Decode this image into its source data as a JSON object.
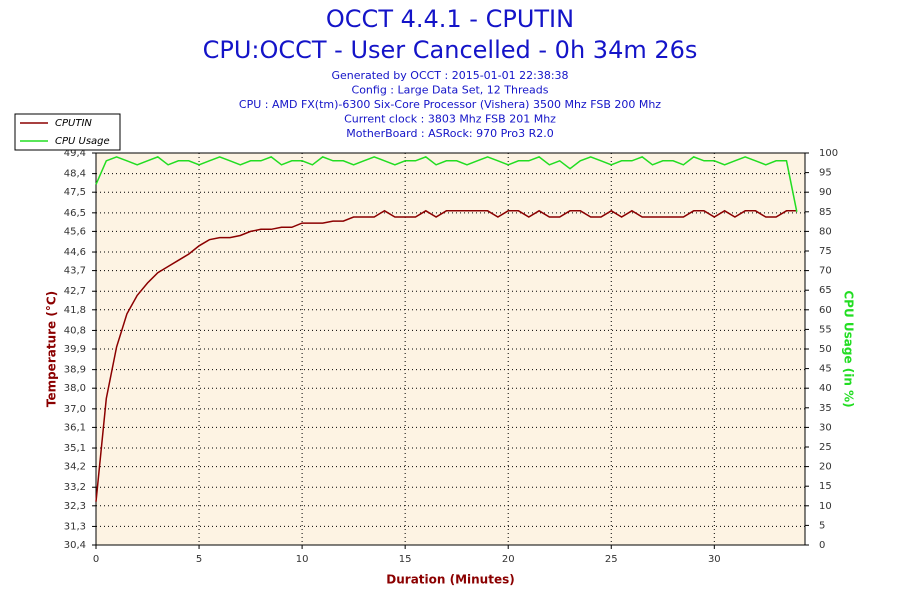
{
  "chart_data": {
    "type": "line",
    "title": "OCCT 4.4.1 - CPUTIN",
    "subtitle": "CPU:OCCT - User Cancelled - 0h 34m 26s",
    "notes": [
      "Generated by OCCT : 2015-01-01 22:38:38",
      "Config : Large Data Set, 12 Threads",
      "CPU : AMD FX(tm)-6300 Six-Core Processor (Vishera) 3500 Mhz FSB 200 Mhz",
      "Current clock : 3803 Mhz FSB 201 Mhz",
      "MotherBoard : ASRock: 970 Pro3 R2.0"
    ],
    "xlabel": "Duration (Minutes)",
    "ylabel": "Temperature (°C)",
    "y2label": "CPU Usage (in %)",
    "x": [
      0,
      0.5,
      1,
      1.5,
      2,
      2.5,
      3,
      3.5,
      4,
      4.5,
      5,
      5.5,
      6,
      6.5,
      7,
      7.5,
      8,
      8.5,
      9,
      9.5,
      10,
      10.5,
      11,
      11.5,
      12,
      12.5,
      13,
      13.5,
      14,
      14.5,
      15,
      15.5,
      16,
      16.5,
      17,
      17.5,
      18,
      18.5,
      19,
      19.5,
      20,
      20.5,
      21,
      21.5,
      22,
      22.5,
      23,
      23.5,
      24,
      24.5,
      25,
      25.5,
      26,
      26.5,
      27,
      27.5,
      28,
      28.5,
      29,
      29.5,
      30,
      30.5,
      31,
      31.5,
      32,
      32.5,
      33,
      33.5,
      34
    ],
    "series": [
      {
        "name": "CPUTIN",
        "color": "#8b0000",
        "axis": "y",
        "values": [
          32.5,
          37.5,
          40.0,
          41.6,
          42.5,
          43.1,
          43.6,
          43.9,
          44.2,
          44.5,
          44.9,
          45.2,
          45.3,
          45.3,
          45.4,
          45.6,
          45.7,
          45.7,
          45.8,
          45.8,
          46.0,
          46.0,
          46.0,
          46.1,
          46.1,
          46.3,
          46.3,
          46.3,
          46.6,
          46.3,
          46.3,
          46.3,
          46.6,
          46.3,
          46.6,
          46.6,
          46.6,
          46.6,
          46.6,
          46.3,
          46.6,
          46.6,
          46.3,
          46.6,
          46.3,
          46.3,
          46.6,
          46.6,
          46.3,
          46.3,
          46.6,
          46.3,
          46.6,
          46.3,
          46.3,
          46.3,
          46.3,
          46.3,
          46.6,
          46.6,
          46.3,
          46.6,
          46.3,
          46.6,
          46.6,
          46.3,
          46.3,
          46.6,
          46.6
        ]
      },
      {
        "name": "CPU Usage",
        "color": "#22dd22",
        "axis": "y2",
        "values": [
          92,
          98,
          99,
          98,
          97,
          98,
          99,
          97,
          98,
          98,
          97,
          98,
          99,
          98,
          97,
          98,
          98,
          99,
          97,
          98,
          98,
          97,
          99,
          98,
          98,
          97,
          98,
          99,
          98,
          97,
          98,
          98,
          99,
          97,
          98,
          98,
          97,
          98,
          99,
          98,
          97,
          98,
          98,
          99,
          97,
          98,
          96,
          98,
          99,
          98,
          97,
          98,
          98,
          99,
          97,
          98,
          98,
          97,
          99,
          98,
          98,
          97,
          98,
          99,
          98,
          97,
          98,
          98,
          85
        ]
      }
    ],
    "xlim": [
      0,
      34.4
    ],
    "xticks": [
      0,
      5,
      10,
      15,
      20,
      25,
      30
    ],
    "ylim": [
      30.4,
      49.4
    ],
    "yticks": [
      {
        "value": 30.4,
        "label": "30,4"
      },
      {
        "value": 31.3,
        "label": "31,3"
      },
      {
        "value": 32.3,
        "label": "32,3"
      },
      {
        "value": 33.2,
        "label": "33,2"
      },
      {
        "value": 34.2,
        "label": "34,2"
      },
      {
        "value": 35.1,
        "label": "35,1"
      },
      {
        "value": 36.1,
        "label": "36,1"
      },
      {
        "value": 37.0,
        "label": "37,0"
      },
      {
        "value": 38.0,
        "label": "38,0"
      },
      {
        "value": 38.9,
        "label": "38,9"
      },
      {
        "value": 39.9,
        "label": "39,9"
      },
      {
        "value": 40.8,
        "label": "40,8"
      },
      {
        "value": 41.8,
        "label": "41,8"
      },
      {
        "value": 42.7,
        "label": "42,7"
      },
      {
        "value": 43.7,
        "label": "43,7"
      },
      {
        "value": 44.6,
        "label": "44,6"
      },
      {
        "value": 45.6,
        "label": "45,6"
      },
      {
        "value": 46.5,
        "label": "46,5"
      },
      {
        "value": 47.5,
        "label": "47,5"
      },
      {
        "value": 48.4,
        "label": "48,4"
      },
      {
        "value": 49.4,
        "label": "49,4"
      }
    ],
    "y2lim": [
      0,
      100
    ],
    "y2ticks": [
      0,
      5,
      10,
      15,
      20,
      25,
      30,
      35,
      40,
      45,
      50,
      55,
      60,
      65,
      70,
      75,
      80,
      85,
      90,
      95,
      100
    ],
    "grid": true,
    "legend": "top-left"
  }
}
